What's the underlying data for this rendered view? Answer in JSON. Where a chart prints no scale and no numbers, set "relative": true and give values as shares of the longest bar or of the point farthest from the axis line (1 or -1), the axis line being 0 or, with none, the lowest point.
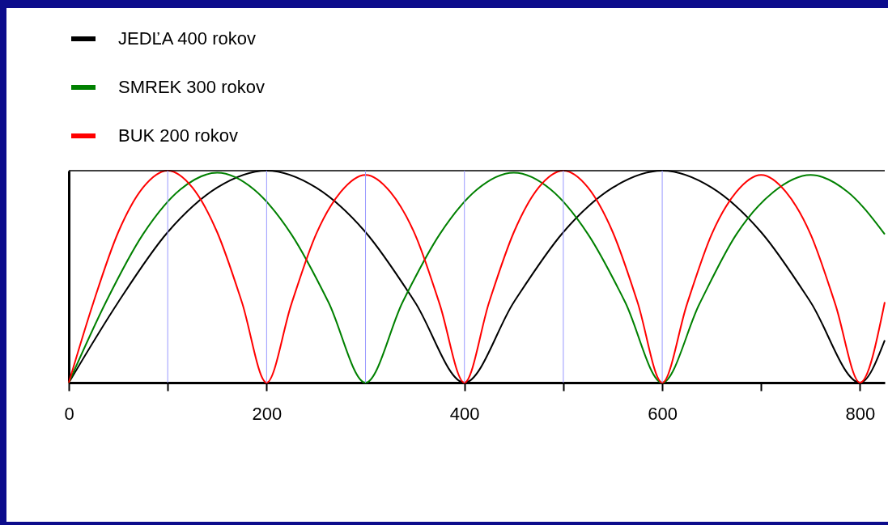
{
  "chart_data": {
    "type": "line",
    "relative": true,
    "legend": "top left",
    "grid": false,
    "marker": "none",
    "line_style": "solid",
    "xlim": [
      0,
      825
    ],
    "xticks": [
      0,
      {
        "value": 100,
        "label": null
      },
      200,
      400,
      {
        "value": 500,
        "label": null
      },
      600,
      {
        "value": 700,
        "label": null
      },
      800
    ],
    "series": [
      {
        "name": "JEDĽA  400 rokov",
        "color": "#000000",
        "x": [
          0,
          50,
          100,
          150,
          200,
          250,
          300,
          350,
          400,
          450,
          500,
          550,
          600,
          650,
          700,
          750,
          800,
          825
        ],
        "values": [
          0,
          0.38,
          0.71,
          0.92,
          1,
          0.92,
          0.71,
          0.38,
          0,
          0.38,
          0.71,
          0.92,
          1,
          0.92,
          0.71,
          0.38,
          0,
          0.2
        ]
      },
      {
        "name": "SMREK  300 rokov",
        "color": "#008000",
        "x": [
          0,
          37.5,
          75,
          112.5,
          150,
          187.5,
          225,
          262.5,
          300,
          337.5,
          375,
          412.5,
          450,
          487.5,
          525,
          562.5,
          600,
          637.5,
          675,
          712.5,
          750,
          787.5,
          825
        ],
        "values": [
          0,
          0.38,
          0.7,
          0.91,
          0.99,
          0.91,
          0.7,
          0.38,
          0,
          0.38,
          0.7,
          0.91,
          0.99,
          0.91,
          0.7,
          0.38,
          0,
          0.37,
          0.7,
          0.9,
          0.98,
          0.9,
          0.7
        ]
      },
      {
        "name": "BUK  200 rokov",
        "color": "#ff0000",
        "x": [
          0,
          25,
          50,
          75,
          100,
          125,
          150,
          175,
          200,
          225,
          250,
          275,
          300,
          325,
          350,
          375,
          400,
          425,
          450,
          475,
          500,
          525,
          550,
          575,
          600,
          625,
          650,
          675,
          700,
          725,
          750,
          775,
          800,
          825
        ],
        "values": [
          0,
          0.38,
          0.71,
          0.92,
          1,
          0.92,
          0.71,
          0.38,
          0,
          0.37,
          0.7,
          0.9,
          0.98,
          0.9,
          0.7,
          0.37,
          0,
          0.38,
          0.71,
          0.92,
          1,
          0.92,
          0.71,
          0.38,
          0,
          0.37,
          0.7,
          0.9,
          0.98,
          0.9,
          0.7,
          0.37,
          0,
          0.38
        ]
      }
    ],
    "ref_lines": [
      {
        "axis": "y",
        "value": 1,
        "color": "#000000"
      },
      {
        "axis": "x",
        "value": 100,
        "color": "#9999ff"
      },
      {
        "axis": "x",
        "value": 200,
        "color": "#9999ff"
      },
      {
        "axis": "x",
        "value": 300,
        "color": "#9999ff"
      },
      {
        "axis": "x",
        "value": 400,
        "color": "#9999ff"
      },
      {
        "axis": "x",
        "value": 500,
        "color": "#9999ff"
      },
      {
        "axis": "x",
        "value": 600,
        "color": "#9999ff"
      }
    ]
  }
}
